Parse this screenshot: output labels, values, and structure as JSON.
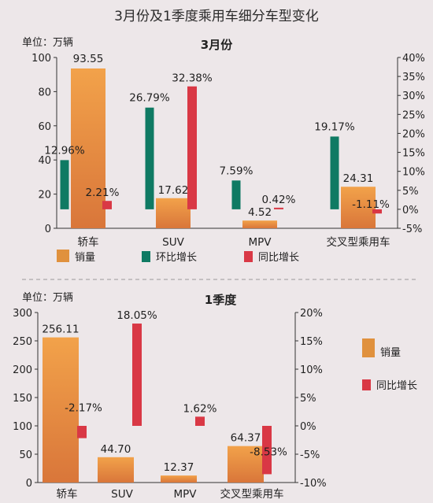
{
  "title": "3月份及1季度乘用车细分车型变化",
  "colors": {
    "sales": "#e0913d",
    "mom": "#0f7a63",
    "yoy": "#d93845",
    "axis": "#333333"
  },
  "chart_data": [
    {
      "type": "bar",
      "title": "3月份",
      "unit_label": "单位：万辆",
      "categories": [
        "轿车",
        "SUV",
        "MPV",
        "交叉型乘用车"
      ],
      "series": [
        {
          "name": "销量",
          "axis": "left",
          "values": [
            93.55,
            17.62,
            4.52,
            24.31
          ],
          "labels": [
            "93.55",
            "17.62",
            "4.52",
            "24.31"
          ]
        },
        {
          "name": "环比增长",
          "axis": "right",
          "values": [
            12.96,
            26.79,
            7.59,
            19.17
          ],
          "labels": [
            "12.96%",
            "26.79%",
            "7.59%",
            "19.17%"
          ]
        },
        {
          "name": "同比增长",
          "axis": "right",
          "values": [
            2.21,
            32.38,
            0.42,
            -1.11
          ],
          "labels": [
            "2.21%",
            "32.38%",
            "0.42%",
            "-1.11%"
          ]
        }
      ],
      "y_left": {
        "min": 0,
        "max": 100,
        "ticks": [
          "0",
          "20",
          "40",
          "60",
          "80",
          "100"
        ]
      },
      "y_right": {
        "min": -5,
        "max": 40,
        "ticks": [
          "-5%",
          "0%",
          "5%",
          "10%",
          "15%",
          "20%",
          "25%",
          "30%",
          "35%",
          "40%"
        ]
      },
      "legend": "bottom"
    },
    {
      "type": "bar",
      "title": "1季度",
      "unit_label": "单位：万辆",
      "categories": [
        "轿车",
        "SUV",
        "MPV",
        "交叉型乘用车"
      ],
      "series": [
        {
          "name": "销量",
          "axis": "left",
          "values": [
            256.11,
            44.7,
            12.37,
            64.37
          ],
          "labels": [
            "256.11",
            "44.70",
            "12.37",
            "64.37"
          ]
        },
        {
          "name": "同比增长",
          "axis": "right",
          "values": [
            -2.17,
            18.05,
            1.62,
            -8.53
          ],
          "labels": [
            "-2.17%",
            "18.05%",
            "1.62%",
            "-8.53%"
          ]
        }
      ],
      "y_left": {
        "min": 0,
        "max": 300,
        "ticks": [
          "0",
          "50",
          "100",
          "150",
          "200",
          "250",
          "300"
        ]
      },
      "y_right": {
        "min": -10,
        "max": 20,
        "ticks": [
          "-10%",
          "-5%",
          "0%",
          "5%",
          "10%",
          "15%",
          "20%"
        ]
      },
      "legend": "right"
    }
  ]
}
